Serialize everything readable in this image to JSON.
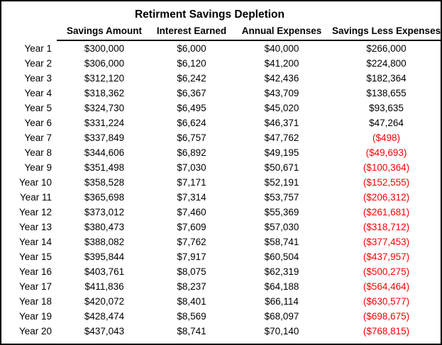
{
  "title": "Retirment Savings Depletion",
  "colors": {
    "text": "#000000",
    "negative": "#FF0000",
    "border": "#000000",
    "background": "#FFFFFF"
  },
  "table": {
    "year_header": "",
    "headers": [
      "Savings Amount",
      "Interest Earned",
      "Annual Expenses",
      "Savings Less Expenses"
    ],
    "rows": [
      {
        "year": "Year 1",
        "values": [
          "$300,000",
          "$6,000",
          "$40,000",
          "$266,000"
        ]
      },
      {
        "year": "Year 2",
        "values": [
          "$306,000",
          "$6,120",
          "$41,200",
          "$224,800"
        ]
      },
      {
        "year": "Year 3",
        "values": [
          "$312,120",
          "$6,242",
          "$42,436",
          "$182,364"
        ]
      },
      {
        "year": "Year 4",
        "values": [
          "$318,362",
          "$6,367",
          "$43,709",
          "$138,655"
        ]
      },
      {
        "year": "Year 5",
        "values": [
          "$324,730",
          "$6,495",
          "$45,020",
          "$93,635"
        ]
      },
      {
        "year": "Year 6",
        "values": [
          "$331,224",
          "$6,624",
          "$46,371",
          "$47,264"
        ]
      },
      {
        "year": "Year 7",
        "values": [
          "$337,849",
          "$6,757",
          "$47,762",
          "($498)"
        ]
      },
      {
        "year": "Year 8",
        "values": [
          "$344,606",
          "$6,892",
          "$49,195",
          "($49,693)"
        ]
      },
      {
        "year": "Year 9",
        "values": [
          "$351,498",
          "$7,030",
          "$50,671",
          "($100,364)"
        ]
      },
      {
        "year": "Year 10",
        "values": [
          "$358,528",
          "$7,171",
          "$52,191",
          "($152,555)"
        ]
      },
      {
        "year": "Year 11",
        "values": [
          "$365,698",
          "$7,314",
          "$53,757",
          "($206,312)"
        ]
      },
      {
        "year": "Year 12",
        "values": [
          "$373,012",
          "$7,460",
          "$55,369",
          "($261,681)"
        ]
      },
      {
        "year": "Year 13",
        "values": [
          "$380,473",
          "$7,609",
          "$57,030",
          "($318,712)"
        ]
      },
      {
        "year": "Year 14",
        "values": [
          "$388,082",
          "$7,762",
          "$58,741",
          "($377,453)"
        ]
      },
      {
        "year": "Year 15",
        "values": [
          "$395,844",
          "$7,917",
          "$60,504",
          "($437,957)"
        ]
      },
      {
        "year": "Year 16",
        "values": [
          "$403,761",
          "$8,075",
          "$62,319",
          "($500,275)"
        ]
      },
      {
        "year": "Year 17",
        "values": [
          "$411,836",
          "$8,237",
          "$64,188",
          "($564,464)"
        ]
      },
      {
        "year": "Year 18",
        "values": [
          "$420,072",
          "$8,401",
          "$66,114",
          "($630,577)"
        ]
      },
      {
        "year": "Year 19",
        "values": [
          "$428,474",
          "$8,569",
          "$68,097",
          "($698,675)"
        ]
      },
      {
        "year": "Year 20",
        "values": [
          "$437,043",
          "$8,741",
          "$70,140",
          "($768,815)"
        ]
      }
    ]
  },
  "chart_data": {
    "type": "table",
    "title": "Retirment Savings Depletion",
    "categories": [
      "Year 1",
      "Year 2",
      "Year 3",
      "Year 4",
      "Year 5",
      "Year 6",
      "Year 7",
      "Year 8",
      "Year 9",
      "Year 10",
      "Year 11",
      "Year 12",
      "Year 13",
      "Year 14",
      "Year 15",
      "Year 16",
      "Year 17",
      "Year 18",
      "Year 19",
      "Year 20"
    ],
    "series": [
      {
        "name": "Savings Amount",
        "values": [
          300000,
          306000,
          312120,
          318362,
          324730,
          331224,
          337849,
          344606,
          351498,
          358528,
          365698,
          373012,
          380473,
          388082,
          395844,
          403761,
          411836,
          420072,
          428474,
          437043
        ]
      },
      {
        "name": "Interest Earned",
        "values": [
          6000,
          6120,
          6242,
          6367,
          6495,
          6624,
          6757,
          6892,
          7030,
          7171,
          7314,
          7460,
          7609,
          7762,
          7917,
          8075,
          8237,
          8401,
          8569,
          8741
        ]
      },
      {
        "name": "Annual Expenses",
        "values": [
          40000,
          41200,
          42436,
          43709,
          45020,
          46371,
          47762,
          49195,
          50671,
          52191,
          53757,
          55369,
          57030,
          58741,
          60504,
          62319,
          64188,
          66114,
          68097,
          70140
        ]
      },
      {
        "name": "Savings Less Expenses",
        "values": [
          266000,
          224800,
          182364,
          138655,
          93635,
          47264,
          -498,
          -49693,
          -100364,
          -152555,
          -206312,
          -261681,
          -318712,
          -377453,
          -437957,
          -500275,
          -564464,
          -630577,
          -698675,
          -768815
        ]
      }
    ],
    "layout": {
      "negative_values_style": "red, parenthesized",
      "grid": false,
      "legend": false
    }
  }
}
